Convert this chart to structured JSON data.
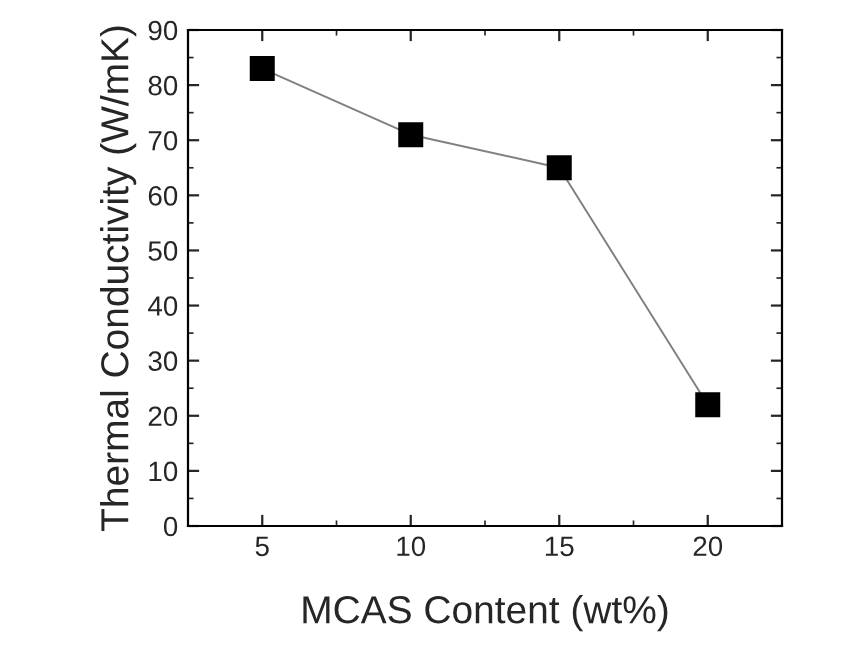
{
  "chart_data": {
    "type": "line",
    "xlabel": "MCAS Content (wt%)",
    "ylabel": "Thermal Conductivity (W/mK)",
    "x": [
      5,
      10,
      15,
      20
    ],
    "series": [
      {
        "color": "#000000",
        "values": [
          83,
          71,
          65,
          22
        ]
      }
    ],
    "xlim": [
      2.5,
      22.5
    ],
    "xticks": [
      5,
      10,
      15,
      20
    ],
    "ylim": [
      0,
      90
    ],
    "yticks": [
      0,
      10,
      20,
      30,
      40,
      50,
      60,
      70,
      80,
      90
    ],
    "marker": "square",
    "line_style": "solid",
    "grid": false,
    "legend": false
  }
}
